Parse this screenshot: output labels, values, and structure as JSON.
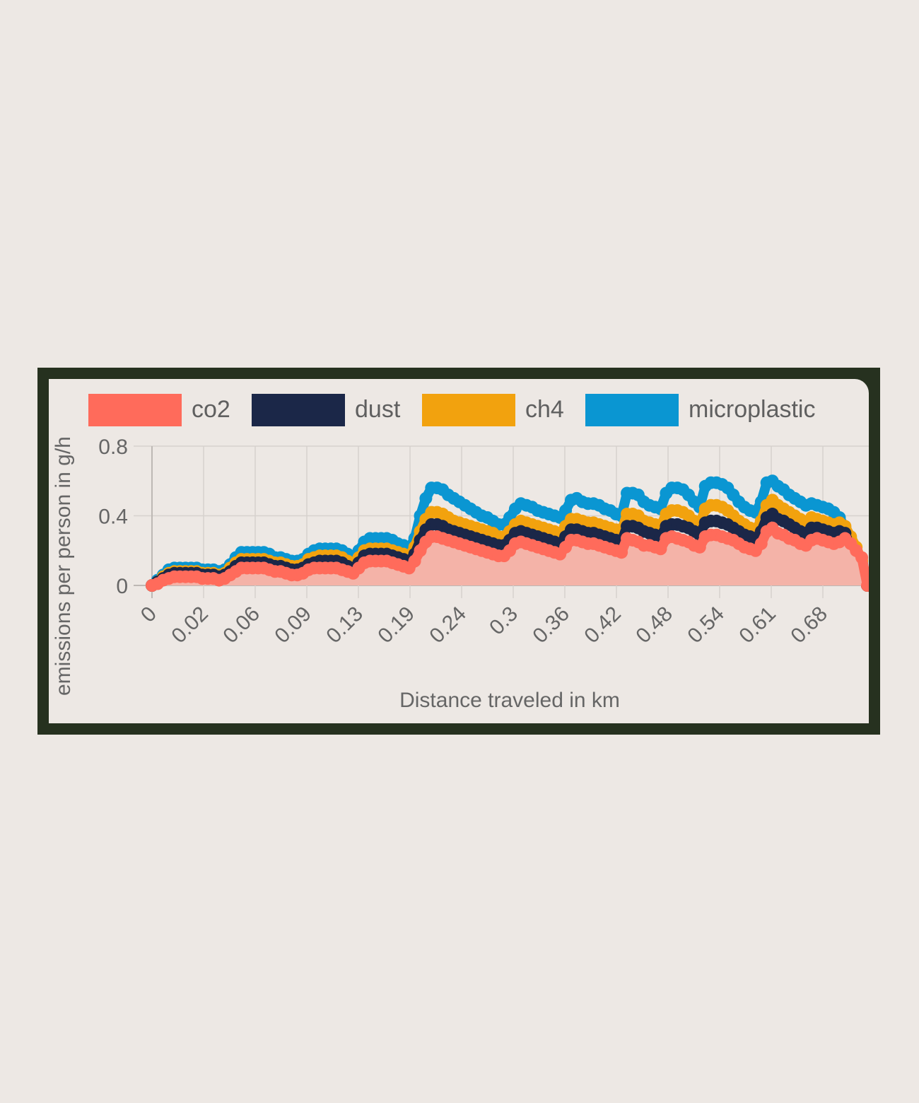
{
  "chart_data": {
    "type": "area",
    "title": "",
    "xlabel": "Distance traveled in km",
    "ylabel": "emissions per person in g/h",
    "ylim": [
      0,
      0.8
    ],
    "y_ticks": [
      "0",
      "0.4",
      "0.8"
    ],
    "x_ticks": [
      "0",
      "0.02",
      "0.06",
      "0.09",
      "0.13",
      "0.19",
      "0.24",
      "0.3",
      "0.36",
      "0.42",
      "0.48",
      "0.54",
      "0.61",
      "0.68"
    ],
    "legend_position": "top",
    "grid": true,
    "series": [
      {
        "name": "co2",
        "color": "#FF6B5B",
        "fill": "#F4B3A8",
        "values": [
          0.0,
          0.01,
          0.03,
          0.04,
          0.05,
          0.05,
          0.05,
          0.05,
          0.05,
          0.04,
          0.04,
          0.04,
          0.03,
          0.04,
          0.06,
          0.08,
          0.1,
          0.1,
          0.1,
          0.1,
          0.1,
          0.09,
          0.08,
          0.08,
          0.07,
          0.06,
          0.06,
          0.07,
          0.09,
          0.1,
          0.1,
          0.1,
          0.1,
          0.1,
          0.09,
          0.08,
          0.07,
          0.1,
          0.13,
          0.14,
          0.14,
          0.14,
          0.14,
          0.13,
          0.12,
          0.11,
          0.1,
          0.14,
          0.2,
          0.25,
          0.28,
          0.28,
          0.27,
          0.26,
          0.25,
          0.24,
          0.23,
          0.22,
          0.21,
          0.2,
          0.19,
          0.18,
          0.17,
          0.17,
          0.2,
          0.24,
          0.25,
          0.24,
          0.23,
          0.22,
          0.21,
          0.2,
          0.19,
          0.18,
          0.22,
          0.26,
          0.26,
          0.25,
          0.24,
          0.24,
          0.23,
          0.22,
          0.21,
          0.2,
          0.19,
          0.27,
          0.26,
          0.25,
          0.23,
          0.23,
          0.22,
          0.21,
          0.27,
          0.28,
          0.27,
          0.26,
          0.25,
          0.23,
          0.22,
          0.28,
          0.29,
          0.29,
          0.28,
          0.27,
          0.26,
          0.24,
          0.22,
          0.21,
          0.2,
          0.24,
          0.31,
          0.33,
          0.3,
          0.29,
          0.27,
          0.26,
          0.24,
          0.23,
          0.26,
          0.27,
          0.26,
          0.25,
          0.24,
          0.25,
          0.27,
          0.24,
          0.2,
          0.16,
          0.0
        ]
      },
      {
        "name": "dust",
        "color": "#1B2748",
        "fill": "none",
        "values": [
          0.0,
          0.02,
          0.04,
          0.06,
          0.07,
          0.07,
          0.07,
          0.07,
          0.07,
          0.06,
          0.06,
          0.06,
          0.05,
          0.06,
          0.08,
          0.11,
          0.13,
          0.13,
          0.13,
          0.13,
          0.13,
          0.12,
          0.11,
          0.11,
          0.1,
          0.09,
          0.09,
          0.1,
          0.12,
          0.13,
          0.14,
          0.14,
          0.14,
          0.14,
          0.13,
          0.11,
          0.1,
          0.13,
          0.17,
          0.18,
          0.18,
          0.18,
          0.18,
          0.17,
          0.16,
          0.15,
          0.14,
          0.18,
          0.26,
          0.32,
          0.35,
          0.35,
          0.34,
          0.32,
          0.31,
          0.3,
          0.29,
          0.28,
          0.27,
          0.26,
          0.25,
          0.24,
          0.23,
          0.23,
          0.26,
          0.3,
          0.31,
          0.3,
          0.29,
          0.28,
          0.27,
          0.26,
          0.25,
          0.24,
          0.28,
          0.32,
          0.32,
          0.31,
          0.3,
          0.3,
          0.29,
          0.28,
          0.27,
          0.26,
          0.25,
          0.34,
          0.34,
          0.33,
          0.31,
          0.3,
          0.29,
          0.28,
          0.34,
          0.35,
          0.35,
          0.34,
          0.33,
          0.31,
          0.29,
          0.36,
          0.37,
          0.37,
          0.36,
          0.35,
          0.33,
          0.31,
          0.29,
          0.28,
          0.27,
          0.31,
          0.39,
          0.41,
          0.38,
          0.37,
          0.35,
          0.33,
          0.31,
          0.3,
          0.33,
          0.33,
          0.32,
          0.31,
          0.3,
          0.31,
          0.3,
          0.22,
          0.18,
          0.12,
          0.0
        ]
      },
      {
        "name": "ch4",
        "color": "#F2A20E",
        "fill": "none",
        "values": [
          0.0,
          0.02,
          0.05,
          0.07,
          0.08,
          0.08,
          0.08,
          0.08,
          0.08,
          0.07,
          0.07,
          0.07,
          0.06,
          0.07,
          0.1,
          0.13,
          0.15,
          0.15,
          0.15,
          0.15,
          0.15,
          0.14,
          0.13,
          0.13,
          0.12,
          0.11,
          0.11,
          0.12,
          0.15,
          0.16,
          0.17,
          0.17,
          0.17,
          0.17,
          0.16,
          0.14,
          0.12,
          0.16,
          0.2,
          0.21,
          0.21,
          0.21,
          0.21,
          0.2,
          0.19,
          0.18,
          0.17,
          0.22,
          0.31,
          0.38,
          0.42,
          0.42,
          0.41,
          0.39,
          0.37,
          0.36,
          0.35,
          0.34,
          0.33,
          0.32,
          0.31,
          0.3,
          0.28,
          0.28,
          0.31,
          0.35,
          0.37,
          0.36,
          0.35,
          0.34,
          0.33,
          0.32,
          0.31,
          0.3,
          0.34,
          0.38,
          0.38,
          0.37,
          0.36,
          0.36,
          0.35,
          0.34,
          0.33,
          0.32,
          0.31,
          0.41,
          0.41,
          0.4,
          0.37,
          0.36,
          0.35,
          0.34,
          0.41,
          0.43,
          0.43,
          0.42,
          0.4,
          0.37,
          0.35,
          0.44,
          0.46,
          0.46,
          0.45,
          0.43,
          0.4,
          0.37,
          0.35,
          0.33,
          0.32,
          0.37,
          0.46,
          0.49,
          0.46,
          0.44,
          0.42,
          0.4,
          0.38,
          0.36,
          0.39,
          0.38,
          0.37,
          0.36,
          0.35,
          0.36,
          0.34,
          0.28,
          0.22,
          0.14,
          0.0
        ]
      },
      {
        "name": "microplastic",
        "color": "#0A96D2",
        "fill": "none",
        "values": [
          0.0,
          0.03,
          0.06,
          0.09,
          0.1,
          0.1,
          0.1,
          0.1,
          0.1,
          0.09,
          0.09,
          0.09,
          0.08,
          0.09,
          0.12,
          0.16,
          0.19,
          0.19,
          0.19,
          0.19,
          0.19,
          0.18,
          0.16,
          0.16,
          0.15,
          0.14,
          0.14,
          0.15,
          0.18,
          0.2,
          0.21,
          0.21,
          0.21,
          0.21,
          0.2,
          0.18,
          0.15,
          0.2,
          0.25,
          0.27,
          0.27,
          0.27,
          0.27,
          0.26,
          0.24,
          0.23,
          0.21,
          0.27,
          0.4,
          0.5,
          0.56,
          0.56,
          0.55,
          0.52,
          0.5,
          0.48,
          0.46,
          0.44,
          0.42,
          0.4,
          0.39,
          0.37,
          0.35,
          0.35,
          0.39,
          0.44,
          0.47,
          0.46,
          0.45,
          0.43,
          0.42,
          0.41,
          0.4,
          0.39,
          0.43,
          0.49,
          0.5,
          0.48,
          0.47,
          0.47,
          0.46,
          0.44,
          0.43,
          0.41,
          0.4,
          0.53,
          0.53,
          0.52,
          0.48,
          0.46,
          0.45,
          0.44,
          0.53,
          0.56,
          0.56,
          0.55,
          0.52,
          0.48,
          0.45,
          0.57,
          0.59,
          0.59,
          0.58,
          0.56,
          0.52,
          0.48,
          0.45,
          0.43,
          0.42,
          0.48,
          0.59,
          0.6,
          0.57,
          0.55,
          0.52,
          0.5,
          0.48,
          0.46,
          0.47,
          0.46,
          0.45,
          0.44,
          0.42,
          0.39,
          0.33,
          0.27,
          0.2,
          0.12,
          0.0
        ]
      }
    ]
  }
}
